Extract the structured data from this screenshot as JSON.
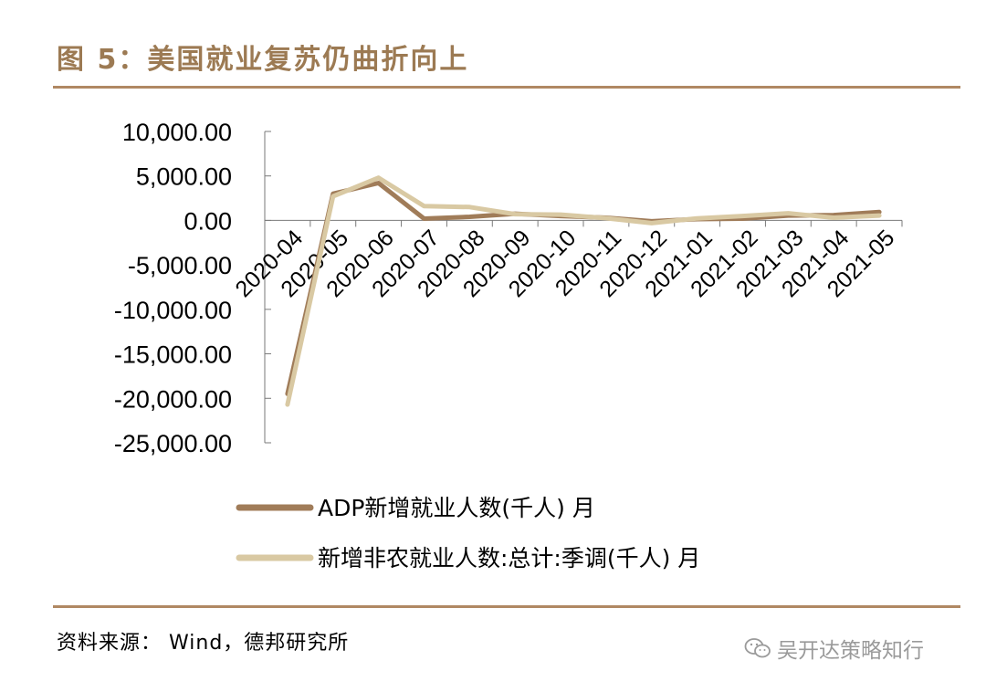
{
  "title": "图 5：美国就业复苏仍曲折向上",
  "source": "资料来源：  Wind，德邦研究所",
  "watermark": "吴开达策略知行",
  "chart_data": {
    "type": "line",
    "categories": [
      "2020-04",
      "2020-05",
      "2020-06",
      "2020-07",
      "2020-08",
      "2020-09",
      "2020-10",
      "2020-11",
      "2020-12",
      "2021-01",
      "2021-02",
      "2021-03",
      "2021-04",
      "2021-05"
    ],
    "ylim": [
      -25000,
      10000
    ],
    "yticks": [
      10000,
      5000,
      0,
      -5000,
      -10000,
      -15000,
      -20000,
      -25000
    ],
    "ytick_labels": [
      "10,000.00",
      "5,000.00",
      "0.00",
      "-5,000.00",
      "-10,000.00",
      "-15,000.00",
      "-20,000.00",
      "-25,000.00"
    ],
    "series": [
      {
        "name": "ADP新增就业人数(千人) 月",
        "color": "#a07c59",
        "values": [
          -19500,
          3000,
          4200,
          200,
          400,
          750,
          500,
          300,
          -100,
          150,
          200,
          550,
          600,
          950
        ]
      },
      {
        "name": "新增非农就业人数:总计:季调(千人) 月",
        "color": "#d9c9a3",
        "values": [
          -20700,
          2700,
          4800,
          1600,
          1500,
          700,
          650,
          250,
          -300,
          230,
          500,
          800,
          300,
          550
        ]
      }
    ],
    "legend_position": "bottom",
    "grid": false
  }
}
